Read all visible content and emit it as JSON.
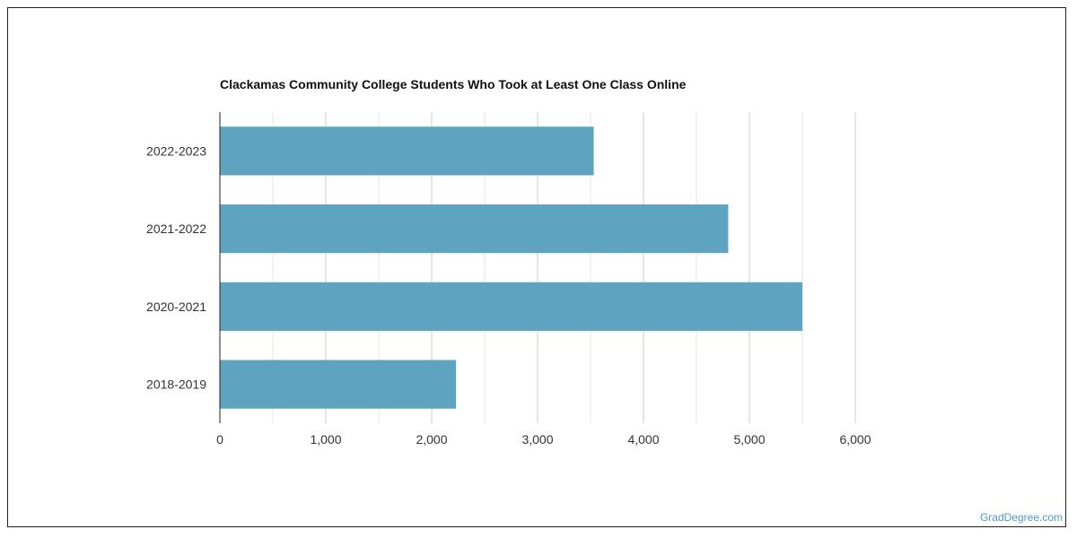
{
  "colors": {
    "bar": "#5ea3c0",
    "grid_major": "#cccccc",
    "grid_minor": "#e6e6e6",
    "axis": "#222222",
    "watermark": "#4f9cc0"
  },
  "chart_data": {
    "type": "bar",
    "orientation": "horizontal",
    "title": "Clackamas Community College Students Who Took at Least One Class Online",
    "categories": [
      "2022-2023",
      "2021-2022",
      "2020-2021",
      "2018-2019"
    ],
    "values": [
      3530,
      4800,
      5500,
      2230
    ],
    "xlabel": "",
    "ylabel": "",
    "xlim": [
      0,
      6000
    ],
    "xticks": [
      0,
      1000,
      2000,
      3000,
      4000,
      5000,
      6000
    ],
    "xtick_labels": [
      "0",
      "1,000",
      "2,000",
      "3,000",
      "4,000",
      "5,000",
      "6,000"
    ],
    "grid": true,
    "legend": "none"
  },
  "watermark": "GradDegree.com"
}
